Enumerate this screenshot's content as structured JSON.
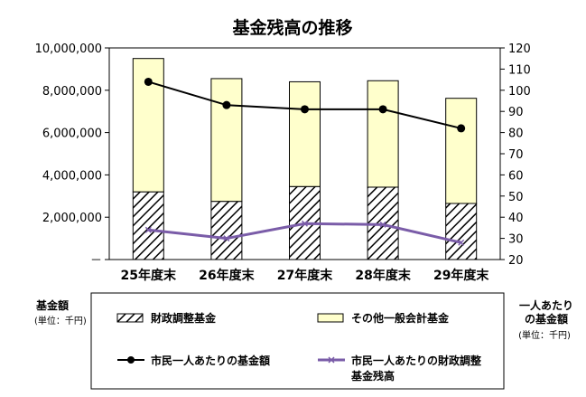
{
  "chart_data": {
    "type": "bar",
    "title": "基金残高の推移",
    "categories": [
      "25年度末",
      "26年度末",
      "27年度末",
      "28年度末",
      "29年度末"
    ],
    "y_left": {
      "range": [
        0,
        10000000
      ],
      "ticks": [
        0,
        2000000,
        4000000,
        6000000,
        8000000,
        10000000
      ],
      "tick_labels": [
        "－",
        "2,000,000",
        "4,000,000",
        "6,000,000",
        "8,000,000",
        "10,000,000"
      ],
      "label": "基金額",
      "unit": "(単位：千円)"
    },
    "y_right": {
      "range": [
        20,
        120
      ],
      "ticks": [
        20,
        30,
        40,
        50,
        60,
        70,
        80,
        90,
        100,
        110,
        120
      ],
      "label": "一人あたり\nの基金額",
      "unit": "(単位：千円)"
    },
    "series": [
      {
        "name": "財政調整基金",
        "kind": "stacked-bar",
        "pattern": "hatch",
        "values": [
          3200000,
          2750000,
          3450000,
          3420000,
          2650000
        ]
      },
      {
        "name": "その他一般会計基金",
        "kind": "stacked-bar",
        "color": "#ffffcc",
        "values": [
          6300000,
          5800000,
          4950000,
          5030000,
          4970000
        ]
      },
      {
        "name": "市民一人あたりの基金額",
        "kind": "line",
        "axis": "right",
        "color": "#000000",
        "values": [
          104,
          93,
          91,
          91,
          82
        ]
      },
      {
        "name": "市民一人あたりの財政調整\n基金残高",
        "kind": "line",
        "axis": "right",
        "color": "#7a5ca8",
        "values": [
          34,
          30,
          37,
          36.5,
          28
        ]
      }
    ],
    "grid": false,
    "legend_position": "bottom"
  }
}
